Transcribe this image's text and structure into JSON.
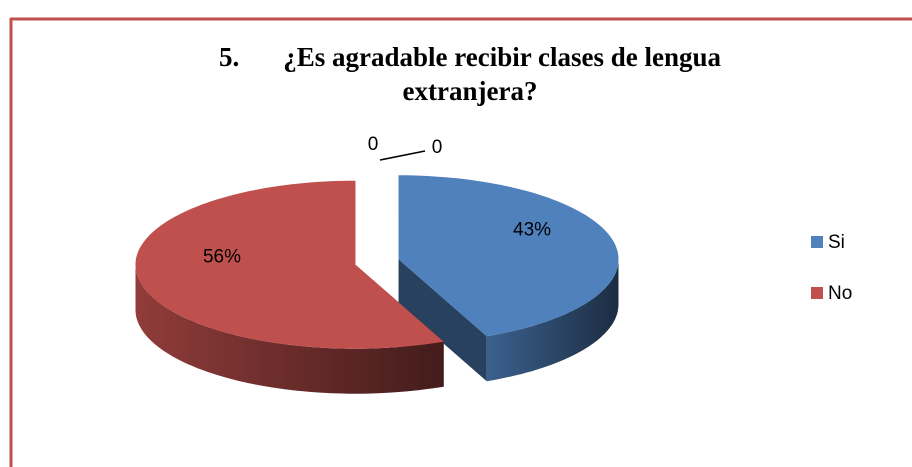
{
  "chart_data": {
    "type": "pie3d",
    "title_number": "5.",
    "title": "¿Es agradable recibir clases de lengua extranjera?",
    "categories": [
      "Si",
      "No",
      null,
      null
    ],
    "values": [
      43,
      56,
      0,
      0
    ],
    "value_labels": [
      "43%",
      "56%",
      "0",
      "0"
    ],
    "colors": [
      "#4f81bd",
      "#c0504d",
      "#9bbb59",
      "#8064a2"
    ],
    "legend": "right"
  }
}
